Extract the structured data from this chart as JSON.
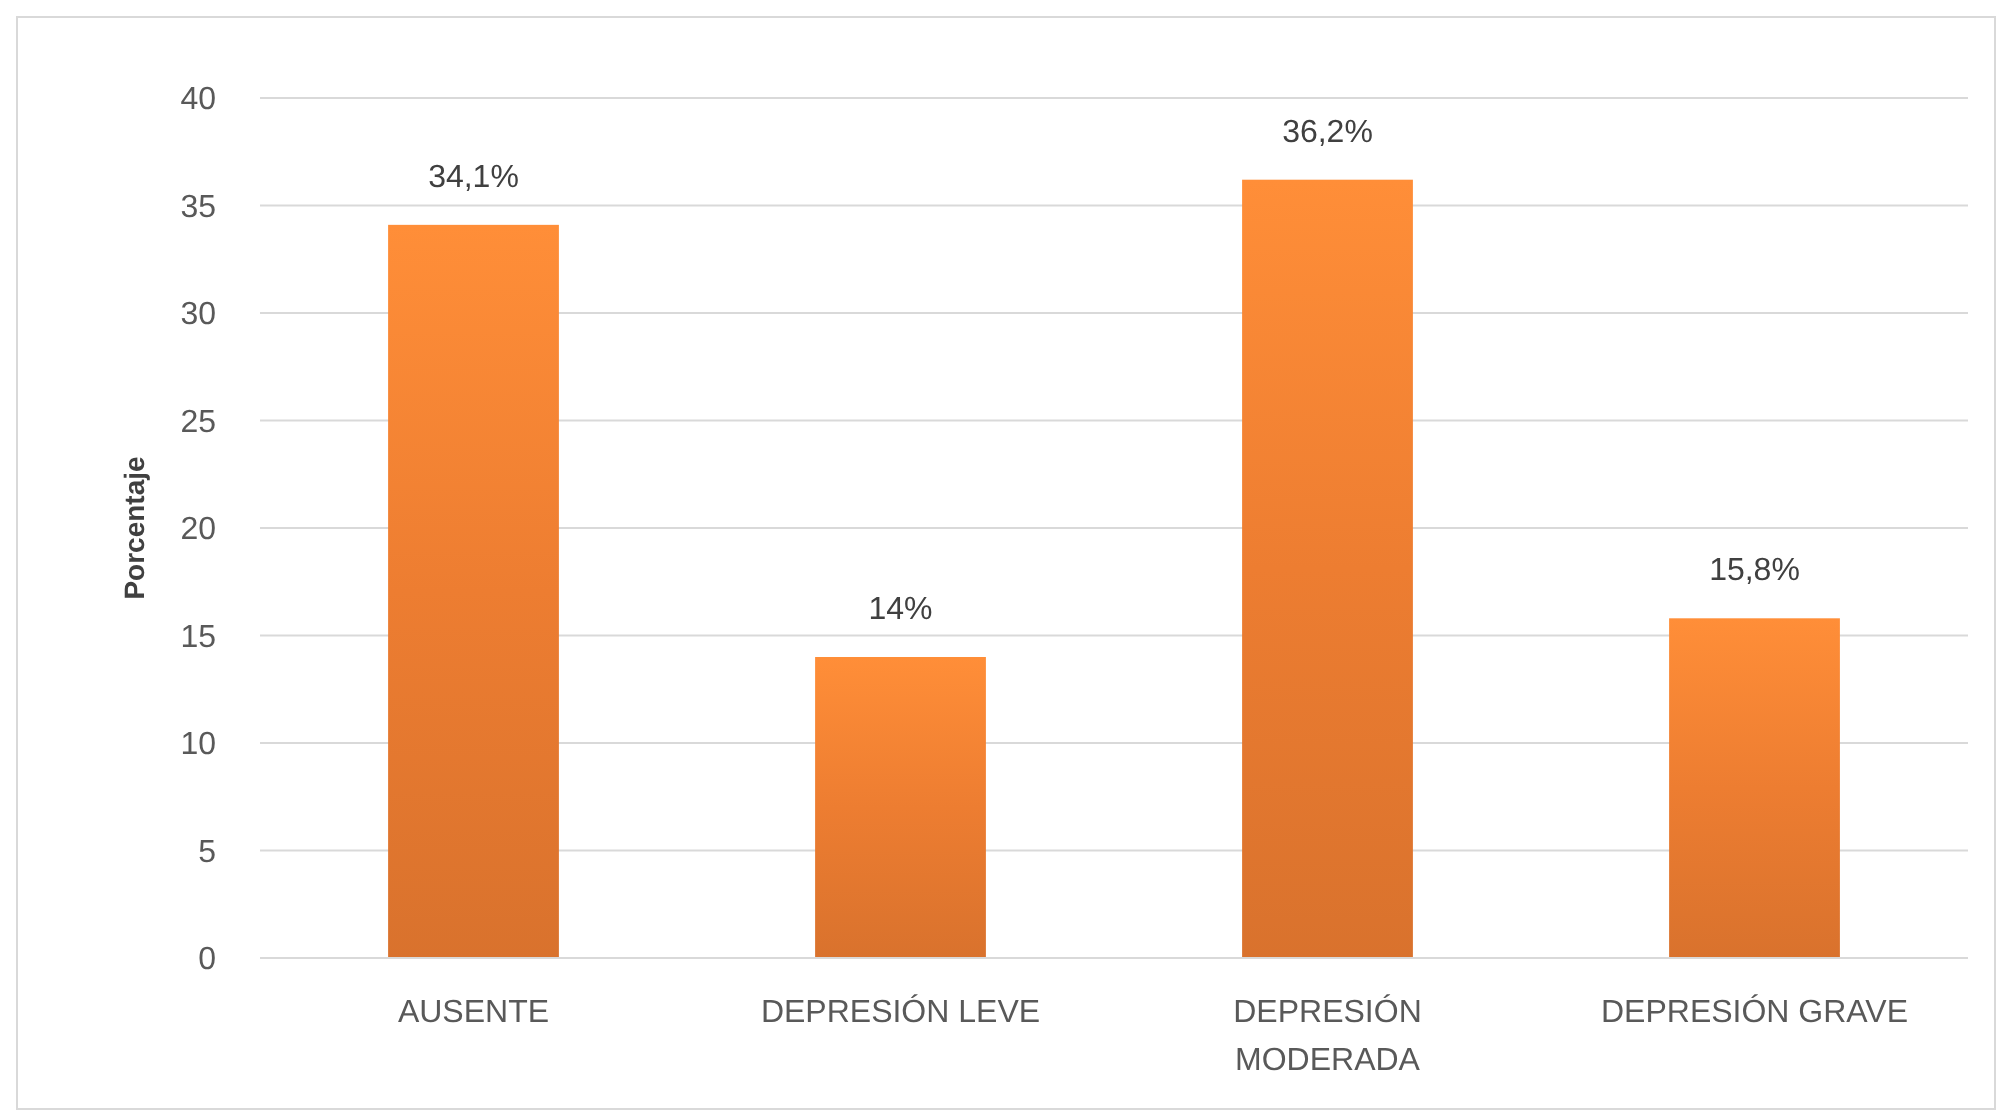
{
  "chart_data": {
    "type": "bar",
    "ylabel": "Porcentaje",
    "categories": [
      "AUSENTE",
      "DEPRESIÓN LEVE",
      "DEPRESIÓN MODERADA",
      "DEPRESIÓN GRAVE"
    ],
    "values": [
      34.1,
      14,
      36.2,
      15.8
    ],
    "value_labels": [
      "34,1%",
      "14%",
      "36,2%",
      "15,8%"
    ],
    "color": "#ed7d31",
    "ylim": [
      0,
      40
    ],
    "yticks": [
      0,
      5,
      10,
      15,
      20,
      25,
      30,
      35,
      40
    ],
    "grid": "y"
  }
}
